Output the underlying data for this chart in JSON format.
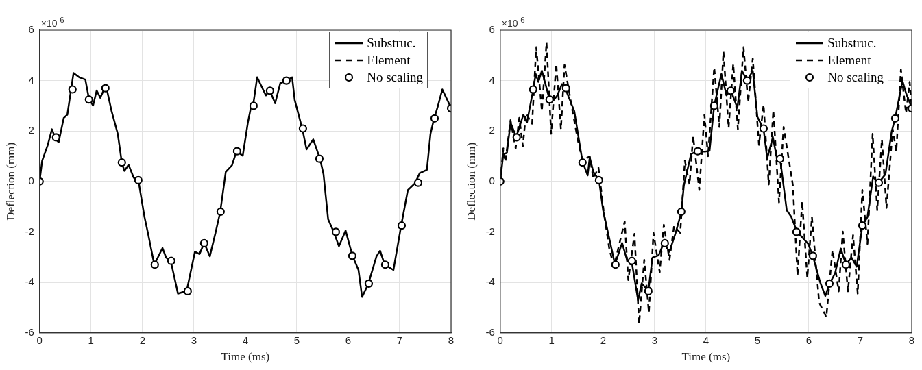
{
  "chart_data": [
    {
      "type": "line",
      "xlabel": "Time (ms)",
      "ylabel": "Deflection (mm)",
      "xlim": [
        0,
        8
      ],
      "xticks": [
        0,
        1,
        2,
        3,
        4,
        5,
        6,
        7,
        8
      ],
      "ylim": [
        -6,
        6
      ],
      "yticks": [
        -6,
        -4,
        -2,
        0,
        2,
        4,
        6
      ],
      "grid": true,
      "legend": "top right",
      "annotations": [
        "×10$^{-6}$"
      ],
      "series": [
        {
          "name": "Substruc.",
          "color": "#000000",
          "line_style": "solid",
          "marker": "none",
          "x": [
            0,
            0.05,
            0.16,
            0.24,
            0.31,
            0.37,
            0.47,
            0.54,
            0.66,
            0.77,
            0.89,
            0.96,
            1.04,
            1.11,
            1.18,
            1.29,
            1.4,
            1.52,
            1.6,
            1.65,
            1.73,
            1.83,
            1.92,
            2.04,
            2.11,
            2.23,
            2.39,
            2.46,
            2.55,
            2.69,
            2.86,
            3.02,
            3.11,
            3.2,
            3.31,
            3.42,
            3.51,
            3.62,
            3.74,
            3.83,
            3.95,
            4.05,
            4.12,
            4.15,
            4.23,
            4.4,
            4.47,
            4.58,
            4.68,
            4.8,
            4.91,
            4.96,
            5.11,
            5.19,
            5.32,
            5.45,
            5.52,
            5.61,
            5.71,
            5.82,
            5.95,
            6.08,
            6.2,
            6.27,
            6.39,
            6.55,
            6.62,
            6.71,
            6.88,
            7.03,
            7.16,
            7.3,
            7.39,
            7.53,
            7.6,
            7.67,
            7.74,
            7.83,
            8
          ],
          "values": [
            0,
            0.82,
            1.45,
            2.07,
            1.7,
            1.55,
            2.52,
            2.65,
            4.3,
            4.13,
            4.04,
            3.28,
            3.01,
            3.61,
            3.32,
            3.81,
            2.79,
            1.89,
            0.73,
            0.42,
            0.66,
            0.15,
            0.06,
            -1.41,
            -2.08,
            -3.3,
            -2.64,
            -3.02,
            -3.15,
            -4.45,
            -4.34,
            -2.79,
            -2.88,
            -2.44,
            -2.97,
            -2.04,
            -1.23,
            0.38,
            0.64,
            1.2,
            1.02,
            2.34,
            3.05,
            3,
            4.13,
            3.41,
            3.63,
            3.1,
            3.9,
            3.99,
            4.13,
            3.23,
            2.07,
            1.27,
            1.67,
            0.91,
            0.29,
            -1.5,
            -1.96,
            -2.57,
            -1.95,
            -2.93,
            -3.51,
            -4.58,
            -4.07,
            -2.97,
            -2.75,
            -3.3,
            -3.51,
            -1.75,
            -0.34,
            -0.07,
            0.33,
            0.46,
            1.89,
            2.5,
            2.96,
            3.65,
            2.92
          ]
        },
        {
          "name": "Element",
          "color": "#000000",
          "line_style": "dashed",
          "marker": "none"
        },
        {
          "name": "No scaling",
          "type": "scatter",
          "color": "#000000",
          "marker": "circle",
          "x": [
            0,
            0.32,
            0.64,
            0.96,
            1.28,
            1.6,
            1.92,
            2.24,
            2.56,
            2.88,
            3.2,
            3.52,
            3.84,
            4.16,
            4.48,
            4.8,
            5.12,
            5.44,
            5.76,
            6.08,
            6.4,
            6.72,
            7.04,
            7.36,
            7.68,
            8
          ],
          "values": [
            0,
            1.75,
            3.65,
            3.25,
            3.7,
            0.75,
            0.05,
            -3.3,
            -3.15,
            -4.35,
            -2.45,
            -1.2,
            1.2,
            3.0,
            3.6,
            4.0,
            2.1,
            0.9,
            -2.0,
            -2.95,
            -4.05,
            -3.3,
            -1.75,
            -0.05,
            2.5,
            2.9
          ]
        }
      ]
    },
    {
      "type": "line",
      "xlabel": "Time (ms)",
      "ylabel": "Deflection (mm)",
      "xlim": [
        0,
        8
      ],
      "xticks": [
        0,
        1,
        2,
        3,
        4,
        5,
        6,
        7,
        8
      ],
      "ylim": [
        -6,
        6
      ],
      "yticks": [
        -6,
        -4,
        -2,
        0,
        2,
        4,
        6
      ],
      "grid": true,
      "legend": "top right",
      "annotations": [
        "×10$^{-6}$"
      ],
      "series": [
        {
          "name": "Substruc.",
          "color": "#000000",
          "line_style": "solid",
          "marker": "none",
          "x": [
            0,
            0.06,
            0.13,
            0.2,
            0.31,
            0.45,
            0.52,
            0.64,
            0.69,
            0.74,
            0.81,
            0.88,
            0.96,
            1.04,
            1.11,
            1.2,
            1.27,
            1.44,
            1.6,
            1.7,
            1.74,
            1.81,
            1.92,
            2,
            2.12,
            2.23,
            2.37,
            2.47,
            2.55,
            2.68,
            2.75,
            2.88,
            2.96,
            3.08,
            3.18,
            3.29,
            3.41,
            3.52,
            3.57,
            3.71,
            3.84,
            3.98,
            4.07,
            4.16,
            4.3,
            4.4,
            4.48,
            4.61,
            4.7,
            4.8,
            4.91,
            5,
            5.12,
            5.19,
            5.3,
            5.38,
            5.44,
            5.57,
            5.66,
            5.77,
            5.85,
            5.99,
            6.08,
            6.22,
            6.32,
            6.4,
            6.51,
            6.62,
            6.72,
            6.83,
            6.93,
            7.04,
            7.14,
            7.25,
            7.35,
            7.49,
            7.61,
            7.68,
            7.82,
            7.89,
            8
          ],
          "values": [
            0,
            1.09,
            1.13,
            2.34,
            1.76,
            2.65,
            2.34,
            3.63,
            4.26,
            3.95,
            4.39,
            3.86,
            3.23,
            3.23,
            3.41,
            3.86,
            3.66,
            2.79,
            0.78,
            0.24,
            0.96,
            0.38,
            0.06,
            -1.14,
            -2.26,
            -3.29,
            -2.44,
            -3.15,
            -3.11,
            -4.71,
            -4.04,
            -4.34,
            -3.02,
            -2.93,
            -2.44,
            -2.79,
            -2.04,
            -1.23,
            -0.16,
            1.09,
            1.2,
            1.18,
            1.22,
            3.01,
            4.26,
            3.41,
            3.63,
            2.92,
            4.39,
            3.99,
            4.39,
            2.56,
            2.07,
            0.91,
            1.76,
            0.91,
            0.91,
            -1.14,
            -1.41,
            -1.99,
            -2.17,
            -2.48,
            -2.97,
            -4,
            -4.54,
            -4.07,
            -3.64,
            -2.66,
            -3.29,
            -3.02,
            -3.38,
            -1.77,
            -1.41,
            0.2,
            -0.07,
            0.29,
            1.98,
            2.52,
            3.99,
            3.5,
            2.92
          ]
        },
        {
          "name": "Element",
          "color": "#000000",
          "line_style": "dashed",
          "marker": "none",
          "x": [
            0,
            0.06,
            0.1,
            0.2,
            0.3,
            0.37,
            0.44,
            0.5,
            0.62,
            0.7,
            0.81,
            0.9,
            0.99,
            1.09,
            1.18,
            1.25,
            1.41,
            1.51,
            1.6,
            1.74,
            1.81,
            1.91,
            2.02,
            2.12,
            2.21,
            2.42,
            2.49,
            2.61,
            2.7,
            2.8,
            2.89,
            2.98,
            3.1,
            3.18,
            3.29,
            3.38,
            3.5,
            3.59,
            3.68,
            3.75,
            3.87,
            3.97,
            4.04,
            4.16,
            4.26,
            4.34,
            4.44,
            4.53,
            4.62,
            4.73,
            4.82,
            4.91,
            5.03,
            5.12,
            5.22,
            5.31,
            5.42,
            5.51,
            5.69,
            5.78,
            5.87,
            5.97,
            6.06,
            6.2,
            6.34,
            6.46,
            6.58,
            6.66,
            6.76,
            6.86,
            6.95,
            7.04,
            7.14,
            7.24,
            7.33,
            7.42,
            7.51,
            7.63,
            7.7,
            7.79,
            7.89,
            7.96,
            8
          ],
          "values": [
            0,
            1.31,
            0.78,
            2.43,
            1.31,
            2.52,
            1.4,
            2.7,
            2.29,
            5.33,
            2.79,
            5.51,
            1.89,
            4.66,
            2.07,
            4.62,
            2.74,
            1.63,
            0.82,
            1,
            0.11,
            0.55,
            -1.32,
            -2.66,
            -3.38,
            -1.59,
            -3.91,
            -2.08,
            -5.65,
            -3.11,
            -5.2,
            -2.04,
            -3.6,
            -1.72,
            -3.11,
            -1.77,
            -2.04,
            0.82,
            -0.12,
            1.8,
            -0.34,
            2.65,
            1,
            4.53,
            2.16,
            5.15,
            2.12,
            4.66,
            2.07,
            5.33,
            3.14,
            4.88,
            1.45,
            3.05,
            -0.12,
            2.83,
            -0.83,
            2.16,
            -0.16,
            -3.73,
            -0.79,
            -3.82,
            -1.41,
            -4.8,
            -5.38,
            -2.71,
            -4.36,
            -1.99,
            -4.36,
            -2.13,
            -4.45,
            -0.34,
            -2.48,
            1.89,
            -1.14,
            1.67,
            -1.05,
            2.07,
            1.18,
            4.44,
            2.7,
            3.95,
            2.92
          ]
        },
        {
          "name": "No scaling",
          "type": "scatter",
          "color": "#000000",
          "marker": "circle",
          "x": [
            0,
            0.32,
            0.64,
            0.96,
            1.28,
            1.6,
            1.92,
            2.24,
            2.56,
            2.88,
            3.2,
            3.52,
            3.84,
            4.16,
            4.48,
            4.8,
            5.12,
            5.44,
            5.76,
            6.08,
            6.4,
            6.72,
            7.04,
            7.36,
            7.68,
            8
          ],
          "values": [
            0,
            1.75,
            3.65,
            3.25,
            3.7,
            0.75,
            0.05,
            -3.3,
            -3.15,
            -4.35,
            -2.45,
            -1.2,
            1.2,
            3.0,
            3.6,
            4.0,
            2.1,
            0.9,
            -2.0,
            -2.95,
            -4.05,
            -3.3,
            -1.75,
            -0.05,
            2.5,
            2.9
          ]
        }
      ]
    }
  ]
}
